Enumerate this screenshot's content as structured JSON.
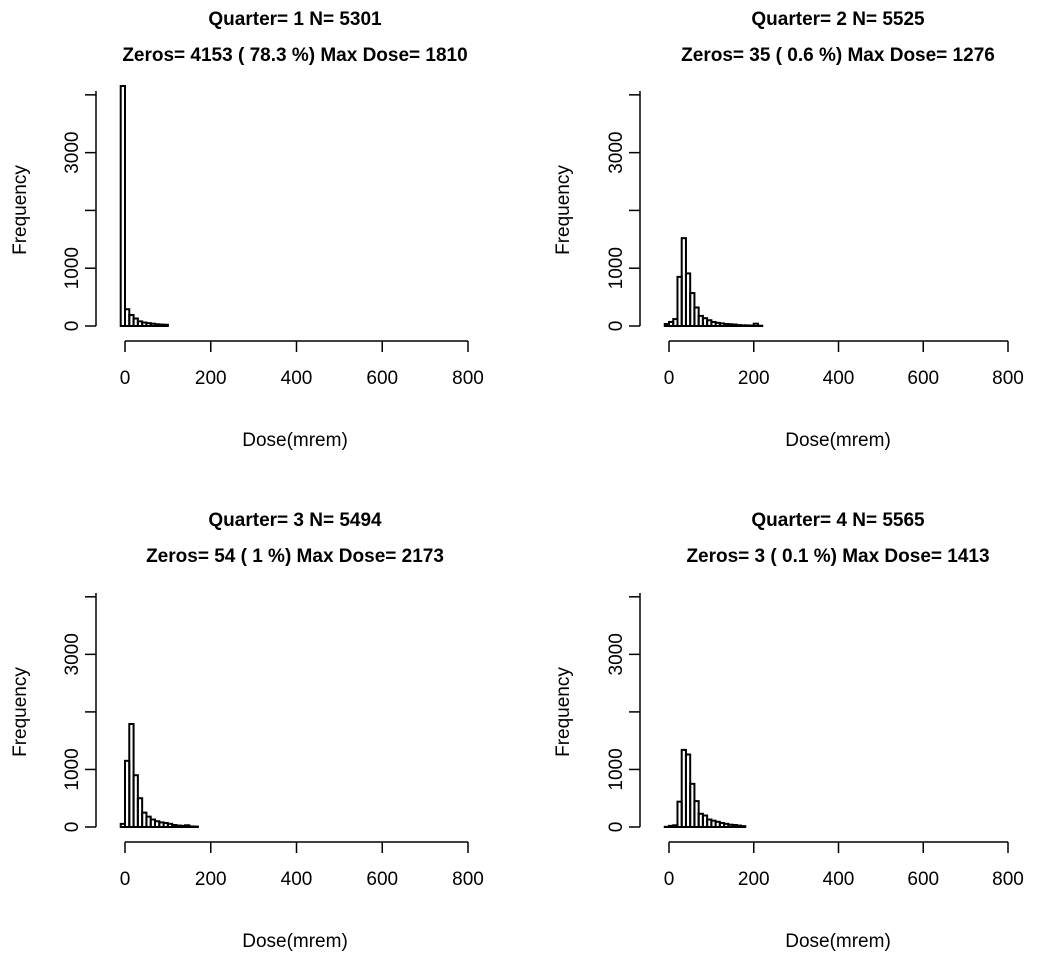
{
  "chart_data": [
    {
      "type": "bar",
      "title": "Quarter= 1  N=  5301",
      "subtitle": "Zeros=  4153  (  78.3 %) Max Dose=  1810",
      "xlabel": "Dose(mrem)",
      "ylabel": "Frequency",
      "xlim": [
        0,
        800
      ],
      "ylim": [
        0,
        4153
      ],
      "xticks": [
        "0",
        "200",
        "400",
        "600",
        "800"
      ],
      "yticks": [
        "0",
        "1000",
        "3000"
      ],
      "ytick_values": [
        0,
        1000,
        3000
      ],
      "grid": false,
      "bin_width": 10,
      "bin_start": -10,
      "bins": 81,
      "values": [
        4153,
        290,
        190,
        130,
        80,
        60,
        50,
        40,
        30,
        25,
        22
      ]
    },
    {
      "type": "bar",
      "title": "Quarter= 2  N=  5525",
      "subtitle": "Zeros=  35  (  0.6 %) Max Dose=  1276",
      "xlabel": "Dose(mrem)",
      "ylabel": "Frequency",
      "xlim": [
        0,
        800
      ],
      "ylim": [
        0,
        4153
      ],
      "xticks": [
        "0",
        "200",
        "400",
        "600",
        "800"
      ],
      "yticks": [
        "0",
        "1000",
        "3000"
      ],
      "ytick_values": [
        0,
        1000,
        3000
      ],
      "grid": false,
      "bin_width": 10,
      "bin_start": -10,
      "bins": 81,
      "values": [
        35,
        70,
        120,
        850,
        1520,
        910,
        570,
        320,
        175,
        135,
        100,
        70,
        55,
        45,
        35,
        30,
        25,
        15,
        12,
        10,
        8,
        40,
        5
      ]
    },
    {
      "type": "bar",
      "title": "Quarter= 3  N=  5494",
      "subtitle": "Zeros=  54  (  1 %) Max Dose=  2173",
      "xlabel": "Dose(mrem)",
      "ylabel": "Frequency",
      "xlim": [
        0,
        800
      ],
      "ylim": [
        0,
        4153
      ],
      "xticks": [
        "0",
        "200",
        "400",
        "600",
        "800"
      ],
      "yticks": [
        "0",
        "1000",
        "3000"
      ],
      "ytick_values": [
        0,
        1000,
        3000
      ],
      "grid": false,
      "bin_width": 10,
      "bin_start": -10,
      "bins": 81,
      "values": [
        54,
        1150,
        1790,
        900,
        500,
        250,
        180,
        130,
        100,
        80,
        70,
        55,
        35,
        25,
        20,
        30,
        10,
        8
      ]
    },
    {
      "type": "bar",
      "title": "Quarter= 4  N=  5565",
      "subtitle": "Zeros=  3  (  0.1 %) Max Dose=  1413",
      "xlabel": "Dose(mrem)",
      "ylabel": "Frequency",
      "xlim": [
        0,
        800
      ],
      "ylim": [
        0,
        4153
      ],
      "xticks": [
        "0",
        "200",
        "400",
        "600",
        "800"
      ],
      "yticks": [
        "0",
        "1000",
        "3000"
      ],
      "ytick_values": [
        0,
        1000,
        3000
      ],
      "grid": false,
      "bin_width": 10,
      "bin_start": -10,
      "bins": 81,
      "values": [
        3,
        20,
        30,
        440,
        1340,
        1260,
        750,
        450,
        230,
        200,
        130,
        110,
        90,
        70,
        55,
        40,
        35,
        25,
        15
      ]
    }
  ]
}
